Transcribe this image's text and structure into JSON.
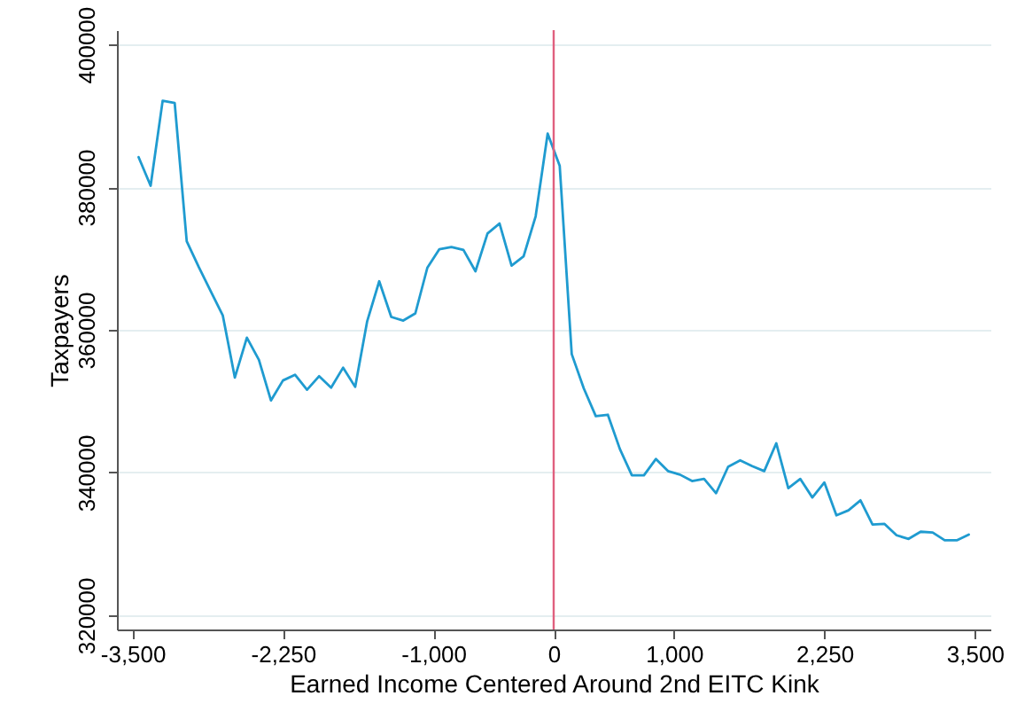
{
  "chart_data": {
    "type": "line",
    "xlabel": "Earned Income Centered Around 2nd EITC Kink",
    "ylabel": "Taxpayers",
    "x": [
      -3450,
      -3350,
      -3250,
      -3150,
      -3050,
      -2950,
      -2850,
      -2750,
      -2650,
      -2550,
      -2450,
      -2350,
      -2250,
      -2150,
      -2050,
      -1950,
      -1850,
      -1750,
      -1650,
      -1550,
      -1450,
      -1350,
      -1250,
      -1150,
      -1050,
      -950,
      -850,
      -750,
      -650,
      -550,
      -450,
      -350,
      -250,
      -150,
      -50,
      50,
      150,
      250,
      350,
      450,
      550,
      650,
      750,
      850,
      950,
      1050,
      1150,
      1250,
      1350,
      1450,
      1550,
      1650,
      1750,
      1850,
      1950,
      2050,
      2150,
      2250,
      2350,
      2450,
      2550,
      2650,
      2750,
      2850,
      2950,
      3050,
      3150,
      3250,
      3350,
      3450
    ],
    "series": [
      {
        "color": "#1f9bd0",
        "values": [
          384200,
          380200,
          392100,
          391800,
          372400,
          368800,
          365400,
          362000,
          353300,
          358900,
          355800,
          350100,
          352900,
          353700,
          351600,
          353500,
          351900,
          354700,
          352000,
          361200,
          366800,
          361800,
          361300,
          362300,
          368700,
          371300,
          371600,
          371200,
          368200,
          373500,
          374900,
          369000,
          370300,
          375900,
          387500,
          383000,
          356600,
          351800,
          347900,
          348100,
          343300,
          339600,
          339600,
          341900,
          340200,
          339700,
          338800,
          339100,
          337100,
          340800,
          341700,
          340900,
          340200,
          344100,
          337800,
          339100,
          336500,
          338600,
          334000,
          334700,
          336100,
          332700,
          332800,
          331200,
          330700,
          331700,
          331600,
          330500,
          330500,
          331300
        ]
      }
    ],
    "xlim": [
      -3630,
      3630
    ],
    "xticks": [
      {
        "value": -3500,
        "label": "-3,500"
      },
      {
        "value": -2250,
        "label": "-2,250"
      },
      {
        "value": -1000,
        "label": "-1,000"
      },
      0,
      {
        "value": 1000,
        "label": "1,000"
      },
      {
        "value": 2250,
        "label": "2,250"
      },
      {
        "value": 3500,
        "label": "3,500"
      }
    ],
    "ylim": [
      318000,
      402000
    ],
    "yticks": [
      320000,
      340000,
      360000,
      380000,
      400000
    ],
    "grid": "y",
    "ref_lines": [
      {
        "axis": "x",
        "value": 0,
        "color": "#e0607e"
      }
    ]
  }
}
